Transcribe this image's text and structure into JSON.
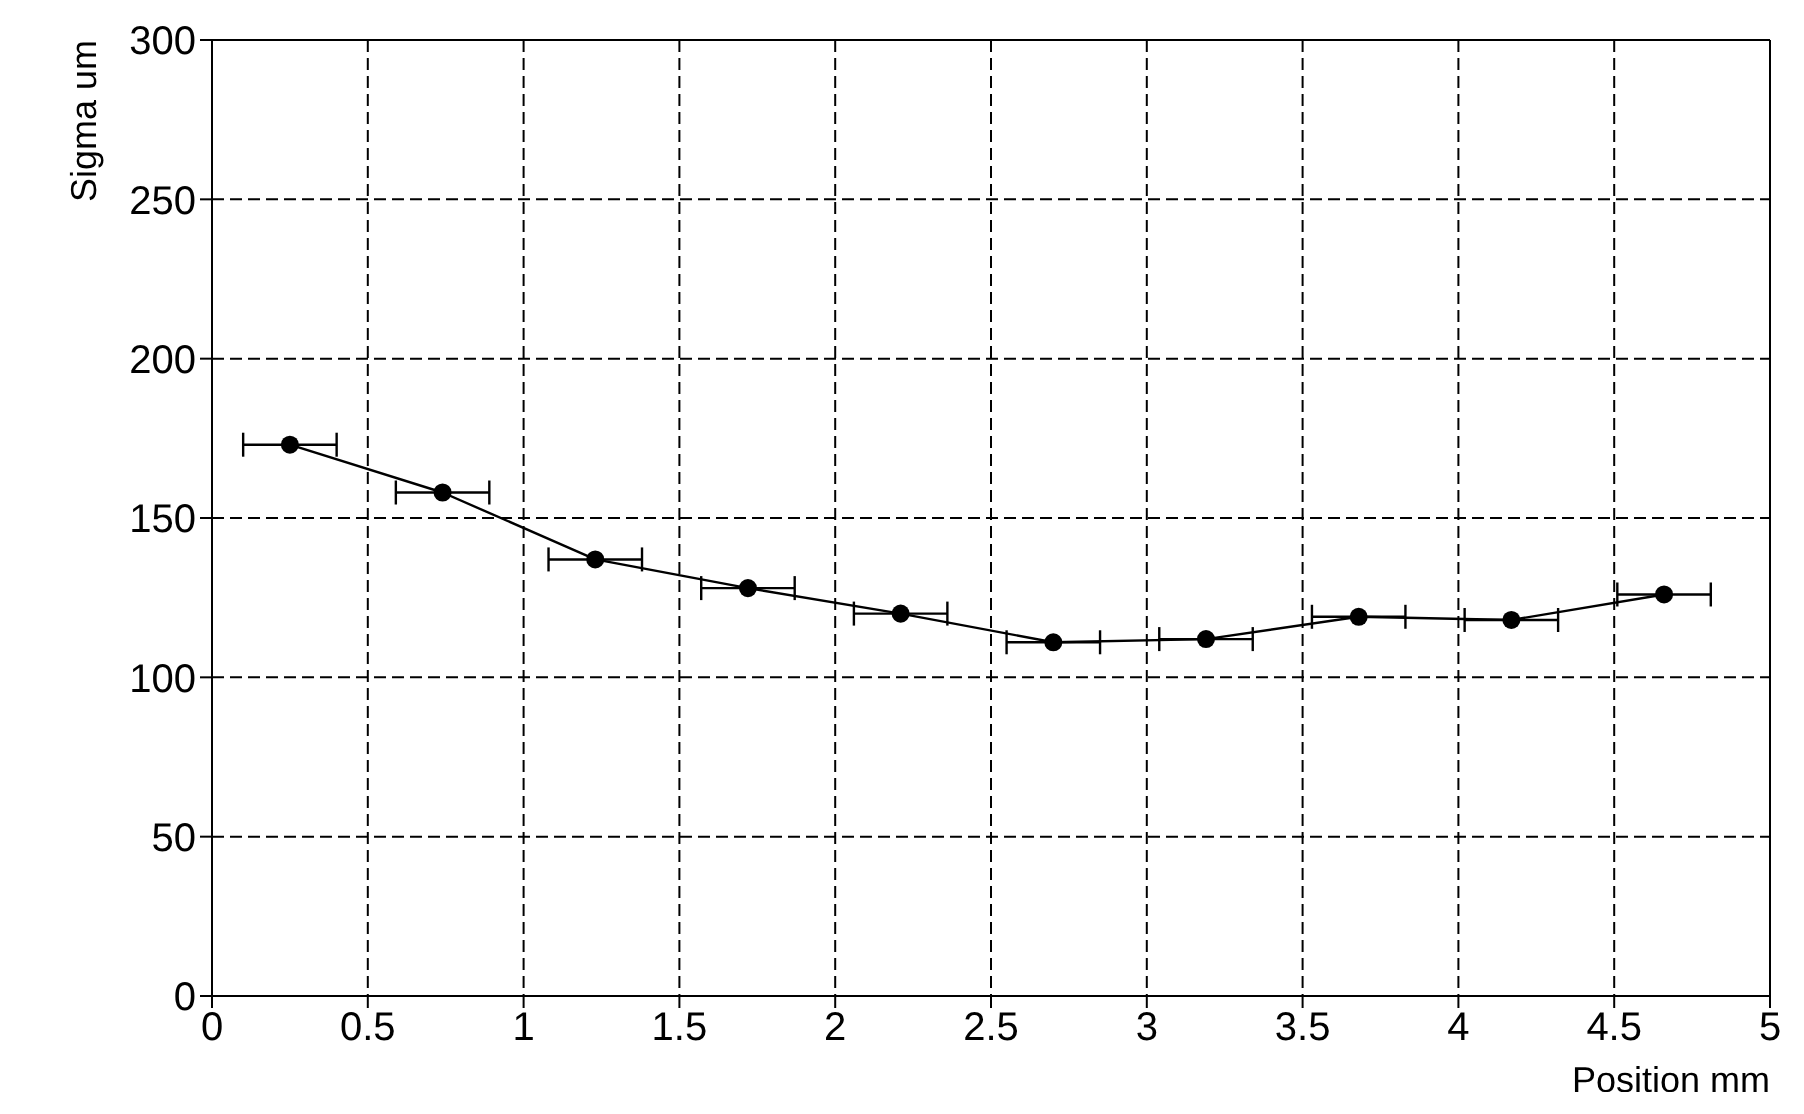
{
  "chart_data": {
    "type": "line",
    "xlabel": "Position mm",
    "ylabel": "Sigma um",
    "x": [
      0.25,
      0.74,
      1.23,
      1.72,
      2.21,
      2.7,
      3.19,
      3.68,
      4.17,
      4.66
    ],
    "series": [
      {
        "color": "#000000",
        "values": [
          173,
          158,
          137,
          128,
          120,
          111,
          112,
          119,
          118,
          126
        ],
        "xerrors": [
          0.15,
          0.15,
          0.15,
          0.15,
          0.15,
          0.15,
          0.15,
          0.15,
          0.15,
          0.15
        ]
      }
    ],
    "xlim": [
      0,
      5
    ],
    "xticks": [
      0,
      0.5,
      1,
      1.5,
      2,
      2.5,
      3,
      3.5,
      4,
      4.5,
      5
    ],
    "ylim": [
      0,
      300
    ],
    "yticks": [
      0,
      50,
      100,
      150,
      200,
      250,
      300
    ],
    "grid": true,
    "marker": "circle",
    "line_style": "solid"
  }
}
